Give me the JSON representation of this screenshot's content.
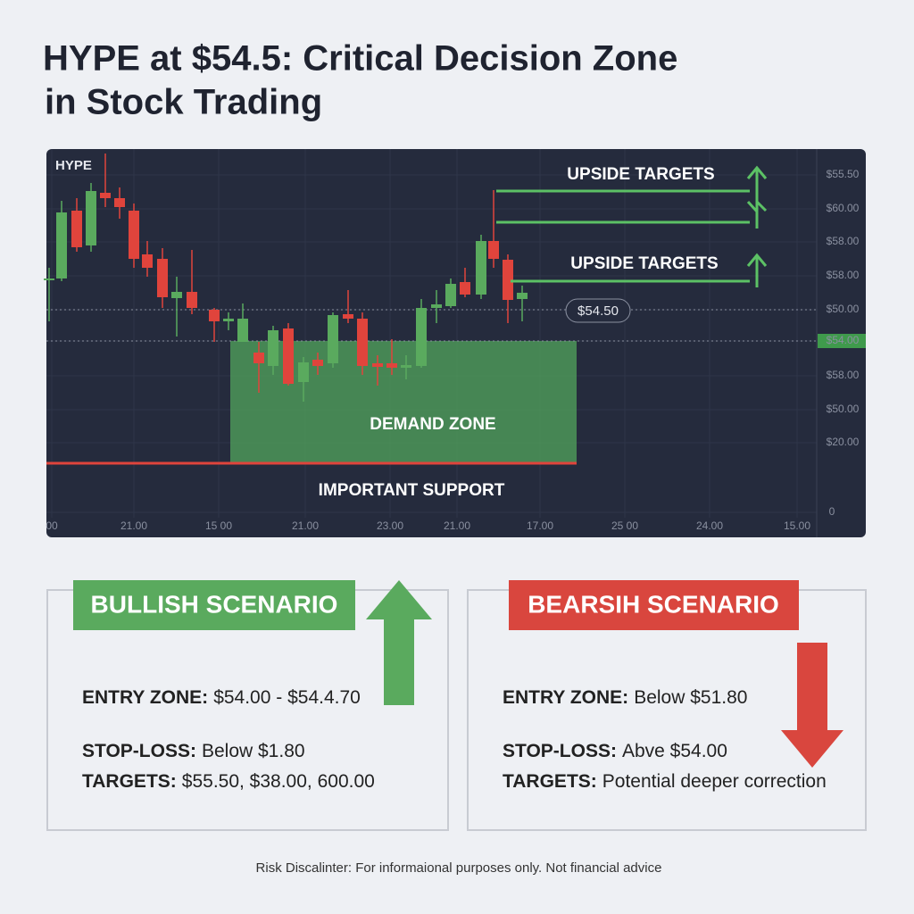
{
  "header": {
    "title_lines": [
      "HYPE at $54.5: Critical Decision Zone",
      "in Stock Trading"
    ]
  },
  "chart": {
    "symbol": "HYPE",
    "upside_targets": [
      "UPSIDE TARGETS",
      "UPSIDE TARGETS"
    ],
    "price_tag": "$54.50",
    "demand_zone": "DEMAND ZONE",
    "support": "IMPORTANT SUPPORT",
    "right_axis": [
      "$55.50",
      "$60.00",
      "$58.00",
      "$58.00",
      "$50.00",
      "$54.00",
      "$58.00",
      "$50.00",
      "$20.00",
      "0"
    ],
    "bottom_axis": [
      "00",
      "21.00",
      "15 00",
      "21.00",
      "23.00",
      "21.00",
      "17.00",
      "25 00",
      "24.00",
      "15.00"
    ]
  },
  "bullish": {
    "heading": "BULLISH SCENARIO",
    "rows": [
      {
        "label": "ENTRY ZONE:",
        "value": "$54.00 - $54.4.70"
      },
      {
        "label": "STOP-LOSS:",
        "value": "Below $1.80"
      },
      {
        "label": "TARGETS:",
        "value": "$55.50, $38.00, 600.00"
      }
    ]
  },
  "bearish": {
    "heading": "BEARSIH SCENARIO",
    "rows": [
      {
        "label": "ENTRY ZONE:",
        "value": "Below $51.80"
      },
      {
        "label": "STOP-LOSS:",
        "value": "Abve $54.00"
      },
      {
        "label": "TARGETS:",
        "value": "Potential deeper correction"
      }
    ]
  },
  "disclaimer": "Risk Discalinter: For informaional purposes only. Not financial advice"
}
